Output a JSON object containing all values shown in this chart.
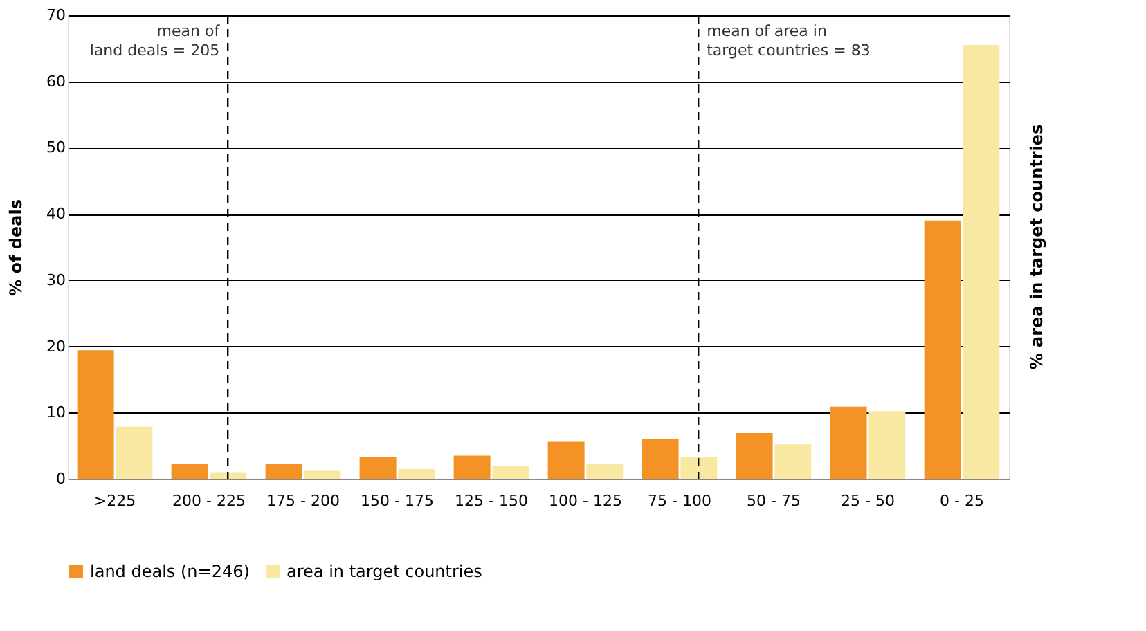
{
  "chart_data": {
    "type": "bar",
    "ylabel": "% of deals",
    "y2label": "% area in target countries",
    "categories": [
      ">225",
      "200 - 225",
      "175 - 200",
      "150 - 175",
      "125 - 150",
      "100 - 125",
      "75 - 100",
      "50 - 75",
      "25 - 50",
      "0 - 25"
    ],
    "series": [
      {
        "name": "land deals (n=246)",
        "color": "#f39325",
        "values": [
          19.4,
          2.3,
          2.3,
          3.3,
          3.5,
          5.6,
          6.0,
          6.9,
          10.9,
          39.0
        ]
      },
      {
        "name": "area in target countries",
        "color": "#f8e8a2",
        "values": [
          7.9,
          1.0,
          1.2,
          1.5,
          1.9,
          2.3,
          3.3,
          5.2,
          10.2,
          65.5
        ]
      }
    ],
    "ylim": [
      0,
      70
    ],
    "yticks": [
      0,
      10,
      20,
      30,
      40,
      50,
      60,
      70
    ],
    "grid": "y",
    "legend": "bottom",
    "ref_lines": [
      {
        "axis": "x",
        "value": "200 - 225",
        "label": "mean of\nland deals = 205",
        "line_style": "dashed",
        "color": "#000000"
      },
      {
        "axis": "x",
        "value": "75 - 100",
        "label": "mean of area in\ntarget countries = 83",
        "line_style": "dashed",
        "color": "#000000"
      }
    ]
  }
}
